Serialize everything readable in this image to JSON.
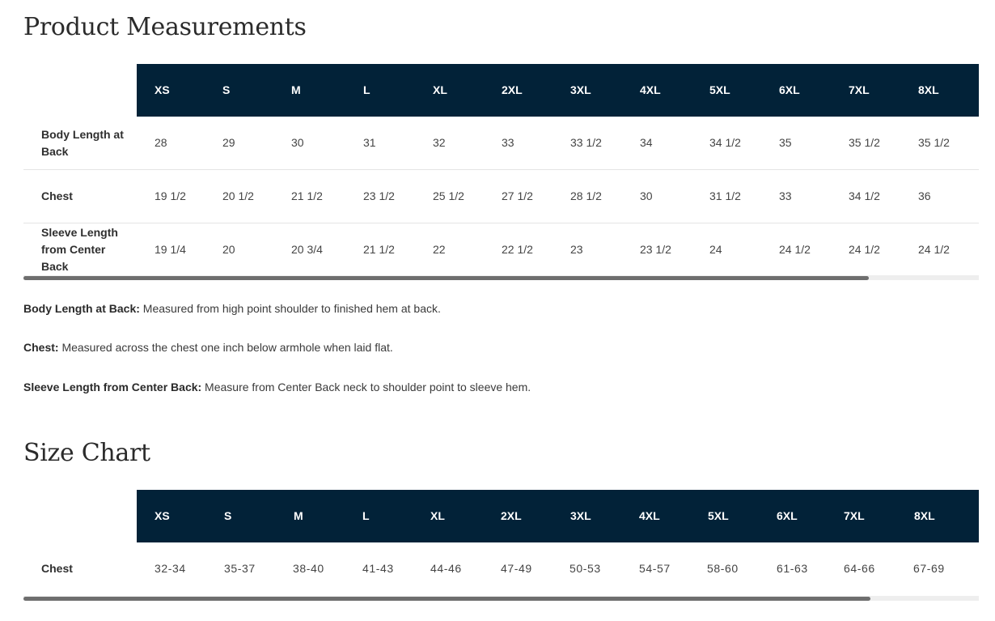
{
  "measurements": {
    "title": "Product Measurements",
    "sizes": [
      "XS",
      "S",
      "M",
      "L",
      "XL",
      "2XL",
      "3XL",
      "4XL",
      "5XL",
      "6XL",
      "7XL",
      "8XL"
    ],
    "rows": [
      {
        "label": "Body Length at Back",
        "values": [
          "28",
          "29",
          "30",
          "31",
          "32",
          "33",
          "33 1/2",
          "34",
          "34 1/2",
          "35",
          "35 1/2",
          "35 1/2"
        ]
      },
      {
        "label": "Chest",
        "values": [
          "19 1/2",
          "20 1/2",
          "21 1/2",
          "23 1/2",
          "25 1/2",
          "27 1/2",
          "28 1/2",
          "30",
          "31 1/2",
          "33",
          "34 1/2",
          "36"
        ]
      },
      {
        "label": "Sleeve Length from Center Back",
        "values": [
          "19 1/4",
          "20",
          "20 3/4",
          "21 1/2",
          "22",
          "22 1/2",
          "23",
          "23 1/2",
          "24",
          "24 1/2",
          "24 1/2",
          "24 1/2"
        ]
      }
    ]
  },
  "notes": [
    {
      "term": "Body Length at Back:",
      "text": " Measured from high point shoulder to finished hem at back."
    },
    {
      "term": "Chest:",
      "text": " Measured across the chest one inch below armhole when laid flat."
    },
    {
      "term": "Sleeve Length from Center Back:",
      "text": " Measure from Center Back neck to shoulder point to sleeve hem."
    }
  ],
  "size_chart": {
    "title": "Size Chart",
    "sizes": [
      "XS",
      "S",
      "M",
      "L",
      "XL",
      "2XL",
      "3XL",
      "4XL",
      "5XL",
      "6XL",
      "7XL",
      "8XL"
    ],
    "rows": [
      {
        "label": "Chest",
        "values": [
          "32-34",
          "35-37",
          "38-40",
          "41-43",
          "44-46",
          "47-49",
          "50-53",
          "54-57",
          "58-60",
          "61-63",
          "64-66",
          "67-69"
        ]
      }
    ]
  },
  "colors": {
    "header_bg": "#022238",
    "header_text": "#ffffff",
    "scroll_thumb": "#6e6e6e",
    "scroll_track": "#eeeeee"
  }
}
